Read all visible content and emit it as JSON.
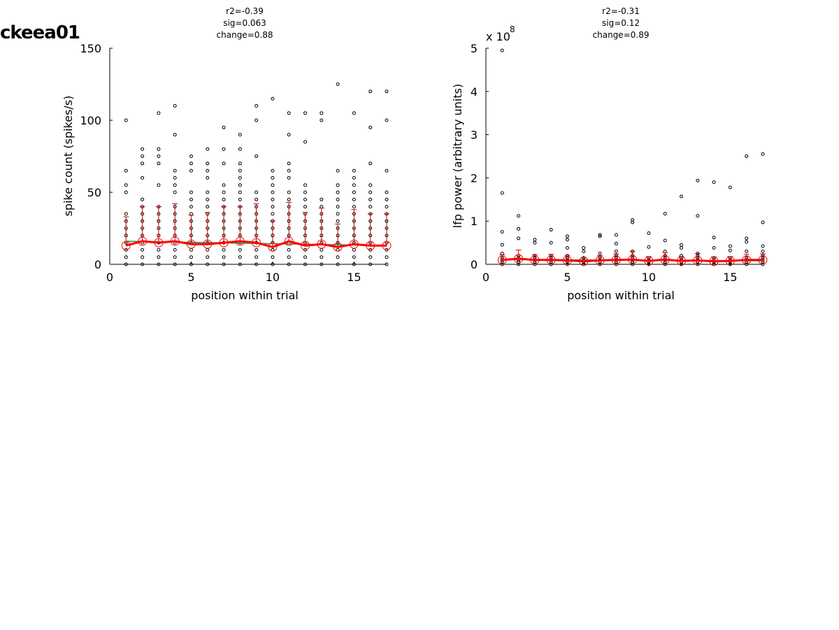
{
  "page": {
    "title": "ckeea01"
  },
  "colors": {
    "mean_line": "#ff0000",
    "error_bar": "#cc0000",
    "fit_line": "#2e8b57",
    "points": "#000000"
  },
  "chart_data": [
    {
      "type": "scatter",
      "stats": {
        "r2": "r2=-0.39",
        "sig": "sig=0.063",
        "change": "change=0.88"
      },
      "xlabel": "position within trial",
      "ylabel": "spike count (spikes/s)",
      "exponent": "",
      "xlim": [
        0,
        17
      ],
      "ylim": [
        0,
        150
      ],
      "xticks": [
        0,
        5,
        10,
        15
      ],
      "yticks": [
        0,
        50,
        100,
        150
      ],
      "points": [
        [
          1,
          0,
          5,
          10,
          15,
          20,
          25,
          30,
          35,
          50,
          55,
          65,
          100
        ],
        [
          2,
          0,
          5,
          10,
          15,
          20,
          25,
          30,
          35,
          40,
          45,
          60,
          70,
          75,
          80
        ],
        [
          3,
          0,
          5,
          10,
          15,
          20,
          25,
          30,
          35,
          40,
          55,
          70,
          75,
          80,
          105
        ],
        [
          4,
          0,
          5,
          10,
          15,
          20,
          25,
          30,
          35,
          40,
          50,
          55,
          60,
          65,
          90,
          110
        ],
        [
          5,
          0,
          5,
          10,
          15,
          20,
          25,
          30,
          35,
          40,
          45,
          50,
          65,
          70,
          75
        ],
        [
          6,
          0,
          5,
          10,
          15,
          20,
          25,
          30,
          35,
          40,
          45,
          50,
          60,
          65,
          70,
          80
        ],
        [
          7,
          0,
          5,
          10,
          15,
          20,
          25,
          30,
          35,
          40,
          45,
          50,
          55,
          70,
          80,
          95
        ],
        [
          8,
          0,
          5,
          10,
          15,
          20,
          25,
          30,
          35,
          40,
          45,
          50,
          55,
          60,
          65,
          70,
          80,
          90
        ],
        [
          9,
          0,
          5,
          10,
          15,
          20,
          25,
          30,
          35,
          40,
          45,
          50,
          75,
          100,
          110
        ],
        [
          10,
          0,
          5,
          10,
          15,
          20,
          25,
          30,
          35,
          40,
          45,
          50,
          55,
          60,
          65,
          115
        ],
        [
          11,
          0,
          5,
          10,
          15,
          20,
          25,
          30,
          35,
          40,
          45,
          50,
          60,
          65,
          70,
          90,
          105
        ],
        [
          12,
          0,
          5,
          10,
          15,
          20,
          25,
          30,
          35,
          40,
          45,
          50,
          55,
          85,
          105
        ],
        [
          13,
          0,
          5,
          10,
          15,
          20,
          25,
          30,
          35,
          40,
          45,
          100,
          105
        ],
        [
          14,
          0,
          5,
          10,
          15,
          20,
          25,
          30,
          35,
          40,
          45,
          50,
          55,
          65,
          125
        ],
        [
          15,
          0,
          5,
          10,
          15,
          20,
          25,
          30,
          35,
          40,
          45,
          50,
          55,
          60,
          65,
          105
        ],
        [
          16,
          0,
          5,
          10,
          15,
          20,
          25,
          30,
          35,
          40,
          45,
          50,
          55,
          70,
          95,
          120
        ],
        [
          17,
          0,
          5,
          10,
          15,
          20,
          25,
          30,
          35,
          40,
          45,
          50,
          65,
          100,
          120
        ]
      ],
      "means": [
        13,
        16,
        15,
        16,
        14,
        14,
        15,
        16,
        15,
        12,
        16,
        13,
        14,
        12,
        14,
        13,
        13
      ],
      "errors": [
        20,
        24,
        25,
        26,
        20,
        22,
        25,
        24,
        27,
        18,
        27,
        23,
        25,
        16,
        24,
        22,
        22
      ],
      "fit": [
        16,
        13
      ]
    },
    {
      "type": "scatter",
      "stats": {
        "r2": "r2=-0.31",
        "sig": "sig=0.12",
        "change": "change=0.89"
      },
      "xlabel": "position within trial",
      "ylabel": "lfp power (arbitrary units)",
      "exponent": "8",
      "exponent_base": "x 10",
      "xlim": [
        0,
        17
      ],
      "ylim": [
        0,
        5
      ],
      "xticks": [
        0,
        5,
        10,
        15
      ],
      "yticks": [
        0,
        1,
        2,
        3,
        4,
        5
      ],
      "points": [
        [
          1,
          0,
          0.05,
          0.1,
          0.15,
          0.25,
          0.45,
          0.75,
          1.65,
          4.95
        ],
        [
          2,
          0,
          0.05,
          0.1,
          0.15,
          0.2,
          0.6,
          0.82,
          1.12
        ],
        [
          3,
          0,
          0.05,
          0.1,
          0.15,
          0.2,
          0.5,
          0.57
        ],
        [
          4,
          0,
          0.05,
          0.1,
          0.15,
          0.2,
          0.5,
          0.8
        ],
        [
          5,
          0,
          0.05,
          0.1,
          0.15,
          0.2,
          0.38,
          0.57,
          0.65
        ],
        [
          6,
          0,
          0.05,
          0.1,
          0.15,
          0.3,
          0.38
        ],
        [
          7,
          0,
          0.05,
          0.1,
          0.15,
          0.25,
          0.65,
          0.68
        ],
        [
          8,
          0,
          0.05,
          0.1,
          0.15,
          0.2,
          0.3,
          0.48,
          0.68
        ],
        [
          9,
          0,
          0.05,
          0.1,
          0.15,
          0.2,
          0.3,
          0.97,
          1.03
        ],
        [
          10,
          0,
          0.05,
          0.1,
          0.15,
          0.4,
          0.72
        ],
        [
          11,
          0,
          0.05,
          0.1,
          0.15,
          0.2,
          0.3,
          0.55,
          1.17
        ],
        [
          12,
          0,
          0.05,
          0.1,
          0.15,
          0.2,
          0.38,
          0.45,
          1.57
        ],
        [
          13,
          0,
          0.05,
          0.1,
          0.15,
          0.2,
          0.25,
          1.12,
          1.94
        ],
        [
          14,
          0,
          0.05,
          0.1,
          0.15,
          0.38,
          0.62,
          1.9
        ],
        [
          15,
          0,
          0.05,
          0.1,
          0.15,
          0.32,
          0.42,
          1.78
        ],
        [
          16,
          0,
          0.05,
          0.1,
          0.15,
          0.3,
          0.52,
          0.6,
          2.5
        ],
        [
          17,
          0,
          0.05,
          0.1,
          0.15,
          0.2,
          0.3,
          0.42,
          0.97,
          2.55
        ]
      ],
      "means": [
        0.1,
        0.13,
        0.1,
        0.1,
        0.09,
        0.07,
        0.09,
        0.1,
        0.11,
        0.08,
        0.11,
        0.08,
        0.09,
        0.07,
        0.08,
        0.1,
        0.1
      ],
      "errors": [
        0.12,
        0.2,
        0.12,
        0.13,
        0.11,
        0.09,
        0.11,
        0.14,
        0.19,
        0.1,
        0.16,
        0.1,
        0.16,
        0.1,
        0.1,
        0.13,
        0.14
      ],
      "fit": [
        0.11,
        0.08
      ]
    }
  ]
}
